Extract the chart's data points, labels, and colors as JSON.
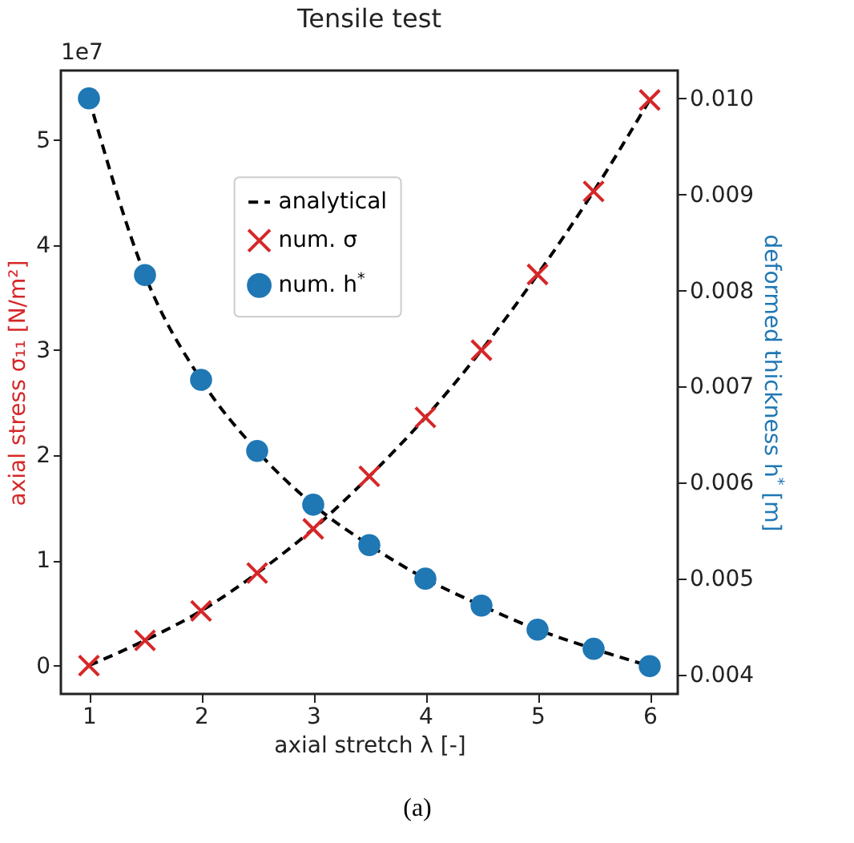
{
  "chart_data": {
    "type": "line",
    "title": "Tensile test",
    "xlabel": "axial stretch λ [-]",
    "ylabel": "axial stress σ₁₁ [N/m²]",
    "y2label": "deformed thickness h$^{*}$ [m]",
    "x": [
      1,
      1.5,
      2,
      2.5,
      3,
      3.5,
      4,
      4.5,
      5,
      5.5,
      6
    ],
    "series": [
      {
        "name": "analytical",
        "type": "line",
        "line_style": "dashed",
        "color": "#000000",
        "values": [
          0,
          0.24,
          0.52,
          0.88,
          1.3,
          1.8,
          2.36,
          3.0,
          3.72,
          4.51,
          5.38
        ]
      },
      {
        "type": "line",
        "line_style": "dashed",
        "color": "#000000",
        "axis": "y2",
        "values": [
          0.01,
          0.00816,
          0.00707,
          0.00633,
          0.00577,
          0.00535,
          0.005,
          0.00472,
          0.00447,
          0.00427,
          0.00409
        ]
      },
      {
        "name": "num. σ",
        "type": "scatter",
        "marker": "cross",
        "color": "#d62728",
        "values": [
          0,
          0.24,
          0.52,
          0.88,
          1.3,
          1.8,
          2.36,
          3.0,
          3.72,
          4.51,
          5.38
        ]
      },
      {
        "name": "num. h$^{*}$",
        "type": "scatter",
        "marker": "circle",
        "color": "#1f77b4",
        "axis": "y2",
        "values": [
          0.01,
          0.00816,
          0.00707,
          0.00633,
          0.00577,
          0.00535,
          0.005,
          0.00472,
          0.00447,
          0.00427,
          0.00409
        ]
      }
    ],
    "xlim": [
      0.75,
      6.25
    ],
    "xticks": [
      1,
      2,
      3,
      4,
      5,
      6
    ],
    "ylim": [
      -0.27,
      5.66
    ],
    "yticks": [
      0,
      1,
      2,
      3,
      4,
      5
    ],
    "y2lim": [
      0.0038,
      0.01029
    ],
    "y2ticks": [
      {
        "value": 0.004,
        "label": "0.004"
      },
      {
        "value": 0.005,
        "label": "0.005"
      },
      {
        "value": 0.006,
        "label": "0.006"
      },
      {
        "value": 0.007,
        "label": "0.007"
      },
      {
        "value": 0.008,
        "label": "0.008"
      },
      {
        "value": 0.009,
        "label": "0.009"
      },
      {
        "value": 0.01,
        "label": "0.010"
      }
    ],
    "annotations": [
      "1e7",
      "(a)"
    ],
    "legend": "top",
    "grid": false
  }
}
